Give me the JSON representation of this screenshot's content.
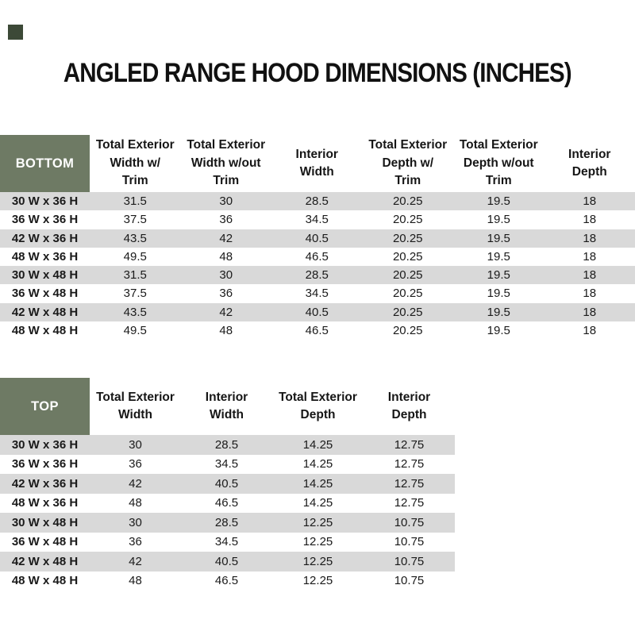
{
  "page": {
    "title": "ANGLED RANGE HOOD DIMENSIONS (INCHES)"
  },
  "colors": {
    "header_green": "#6e7a64",
    "row_stripe": "#d9d9d9",
    "title_text": "#111111",
    "body_text": "#1a1a1a",
    "section_label_text": "#ffffff",
    "corner_mark": "#3c4937"
  },
  "bottom_table": {
    "section_label": "BOTTOM",
    "headers": [
      "Total Exterior\nWidth w/\nTrim",
      "Total Exterior\nWidth w/out\nTrim",
      "Interior\nWidth",
      "Total Exterior\nDepth w/\nTrim",
      "Total Exterior\nDepth w/out\nTrim",
      "Interior\nDepth"
    ],
    "rows": [
      {
        "label": "30 W x 36 H",
        "values": [
          "31.5",
          "30",
          "28.5",
          "20.25",
          "19.5",
          "18"
        ]
      },
      {
        "label": "36 W x 36 H",
        "values": [
          "37.5",
          "36",
          "34.5",
          "20.25",
          "19.5",
          "18"
        ]
      },
      {
        "label": "42 W x 36 H",
        "values": [
          "43.5",
          "42",
          "40.5",
          "20.25",
          "19.5",
          "18"
        ]
      },
      {
        "label": "48 W x 36 H",
        "values": [
          "49.5",
          "48",
          "46.5",
          "20.25",
          "19.5",
          "18"
        ]
      },
      {
        "label": "30 W x 48 H",
        "values": [
          "31.5",
          "30",
          "28.5",
          "20.25",
          "19.5",
          "18"
        ]
      },
      {
        "label": "36 W x 48 H",
        "values": [
          "37.5",
          "36",
          "34.5",
          "20.25",
          "19.5",
          "18"
        ]
      },
      {
        "label": "42 W x 48 H",
        "values": [
          "43.5",
          "42",
          "40.5",
          "20.25",
          "19.5",
          "18"
        ]
      },
      {
        "label": "48 W x 48 H",
        "values": [
          "49.5",
          "48",
          "46.5",
          "20.25",
          "19.5",
          "18"
        ]
      }
    ]
  },
  "top_table": {
    "section_label": "TOP",
    "headers": [
      "Total Exterior\nWidth",
      "Interior\nWidth",
      "Total Exterior\nDepth",
      "Interior\nDepth"
    ],
    "rows": [
      {
        "label": "30 W x 36 H",
        "values": [
          "30",
          "28.5",
          "14.25",
          "12.75"
        ]
      },
      {
        "label": "36 W x 36 H",
        "values": [
          "36",
          "34.5",
          "14.25",
          "12.75"
        ]
      },
      {
        "label": "42 W x 36 H",
        "values": [
          "42",
          "40.5",
          "14.25",
          "12.75"
        ]
      },
      {
        "label": "48 W x 36 H",
        "values": [
          "48",
          "46.5",
          "14.25",
          "12.75"
        ]
      },
      {
        "label": "30 W x 48 H",
        "values": [
          "30",
          "28.5",
          "12.25",
          "10.75"
        ]
      },
      {
        "label": "36 W x 48 H",
        "values": [
          "36",
          "34.5",
          "12.25",
          "10.75"
        ]
      },
      {
        "label": "42 W x 48 H",
        "values": [
          "42",
          "40.5",
          "12.25",
          "10.75"
        ]
      },
      {
        "label": "48 W x 48 H",
        "values": [
          "48",
          "46.5",
          "12.25",
          "10.75"
        ]
      }
    ]
  }
}
